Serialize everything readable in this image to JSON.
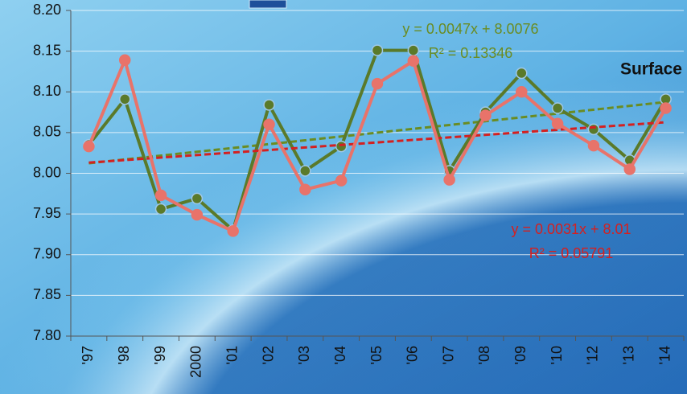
{
  "chart_data": {
    "type": "line",
    "annotation": "Surface",
    "categories": [
      "'97",
      "'98",
      "'99",
      "2000",
      "'01",
      "'02",
      "'03",
      "'04",
      "'05",
      "'06",
      "'07",
      "'08",
      "'09",
      "'10",
      "'12",
      "'13",
      "'14"
    ],
    "series": [
      {
        "color": "#5a7a2a",
        "values": [
          8.035,
          8.091,
          7.956,
          7.969,
          7.93,
          8.084,
          8.003,
          8.033,
          8.151,
          8.151,
          8.003,
          8.075,
          8.123,
          8.08,
          8.054,
          8.016,
          8.091
        ],
        "trend": {
          "color": "#6a8c22",
          "equation": "y = 0.0047x + 8.0076",
          "r2": "R² = 0.13346",
          "start": 8.0123,
          "end": 8.0875
        }
      },
      {
        "color": "#e8736a",
        "values": [
          8.033,
          8.139,
          7.973,
          7.949,
          7.929,
          8.06,
          7.98,
          7.991,
          8.11,
          8.138,
          7.992,
          8.071,
          8.1,
          8.061,
          8.034,
          8.005,
          8.08
        ],
        "trend": {
          "color": "#d42020",
          "equation": "y = 0.0031x + 8.01",
          "r2": "R² = 0.05791",
          "start": 8.0131,
          "end": 8.0627
        }
      }
    ],
    "ylim": [
      7.8,
      8.2
    ],
    "yticks": [
      {
        "value": 7.8,
        "label": "7.80"
      },
      7.85,
      {
        "value": 7.9,
        "label": "7.90"
      },
      7.95,
      {
        "value": 8.0,
        "label": "8.00"
      },
      8.05,
      {
        "value": 8.1,
        "label": "8.10"
      },
      8.15,
      {
        "value": 8.2,
        "label": "8.20"
      }
    ],
    "grid": true
  }
}
